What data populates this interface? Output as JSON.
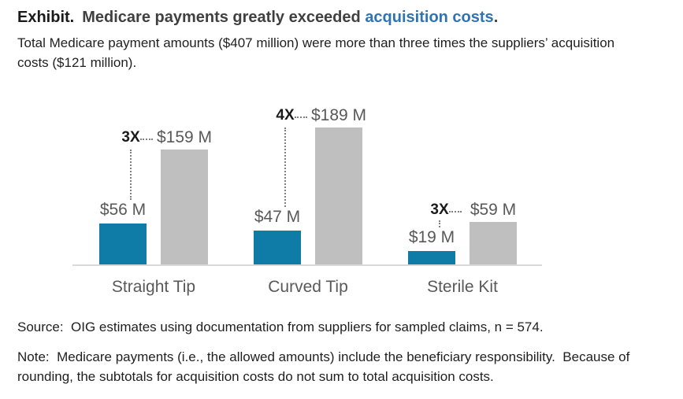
{
  "title": {
    "exhibit_label": "Exhibit.",
    "main": "Medicare payments greatly exceeded",
    "highlight": "acquisition costs",
    "period": ".",
    "highlight_color": "#2e74b5"
  },
  "subtitle": "Total Medicare payment amounts ($407 million) were more than three times the suppliers’ acquisition\ncosts ($121 million).",
  "chart_data": {
    "type": "bar",
    "categories": [
      "Straight Tip",
      "Curved Tip",
      "Sterile Kit"
    ],
    "series": [
      {
        "name": "suppliers-acquisition-costs",
        "values": [
          56,
          47,
          19
        ],
        "labels": [
          "$56 M",
          "$47 M",
          "$19 M"
        ],
        "color": "#0e7ca6"
      },
      {
        "name": "medicare-payments",
        "values": [
          159,
          189,
          59
        ],
        "labels": [
          "$159 M",
          "$189 M",
          "$59 M"
        ],
        "color": "#bfbfbf"
      }
    ],
    "multipliers": [
      "3X",
      "4X",
      "3X"
    ],
    "unit": "USD millions",
    "ylim": [
      0,
      200
    ],
    "grid": false,
    "legend": "none",
    "baseline_color": "#d9d9d9",
    "label_color": "#595959",
    "connector_color": "#808080"
  },
  "source": "Source:  OIG estimates using documentation from suppliers for sampled claims, n = 574.",
  "note": "Note:  Medicare payments (i.e., the allowed amounts) include the beneficiary responsibility.  Because of\nrounding, the subtotals for acquisition costs do not sum to total acquisition costs."
}
